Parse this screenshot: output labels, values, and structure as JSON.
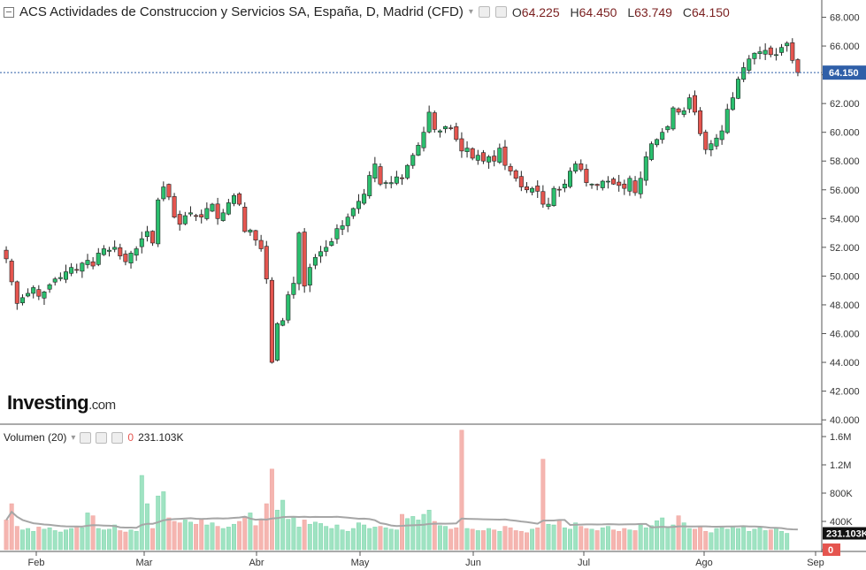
{
  "header": {
    "title": "ACS Actividades de Construccion y Servicios SA, España, D, Madrid (CFD)",
    "ohlc": [
      {
        "k": "O",
        "v": "64.225"
      },
      {
        "k": "H",
        "v": "64.450"
      },
      {
        "k": "L",
        "v": "63.749"
      },
      {
        "k": "C",
        "v": "64.150"
      }
    ]
  },
  "logo": {
    "brand": "Investing",
    "suffix": ".com"
  },
  "volume_legend": {
    "label": "Volumen (20)",
    "zero": "0",
    "value": "231.103K"
  },
  "colors": {
    "up": "#26a69a",
    "up_fill": "#2bbf6e",
    "down": "#e5554f",
    "vol_up": "#9fe3c2",
    "vol_down": "#f5b5b0",
    "ma": "#a6a6a6",
    "price_line": "#2f5fa8"
  },
  "chart_data": [
    {
      "type": "candlestick",
      "title": "ACS Actividades de Construccion y Servicios SA, España, D, Madrid (CFD)",
      "x_ticks": [
        "Feb",
        "Mar",
        "Abr",
        "May",
        "Jun",
        "Jul",
        "Ago",
        "Sep"
      ],
      "y_ticks": [
        "40.000",
        "42.000",
        "44.000",
        "46.000",
        "48.000",
        "50.000",
        "52.000",
        "54.000",
        "56.000",
        "58.000",
        "60.000",
        "62.000",
        "64.000",
        "66.000",
        "68.000"
      ],
      "ylim": [
        39.7,
        69.2
      ],
      "last_price": "64.150",
      "grid": false,
      "closes": [
        51.2,
        49.6,
        48.1,
        48.5,
        48.8,
        49.2,
        48.6,
        48.9,
        49.4,
        49.8,
        49.9,
        50.3,
        50.6,
        50.4,
        50.9,
        51.1,
        50.7,
        51.6,
        51.9,
        51.8,
        52.0,
        51.4,
        51.0,
        51.6,
        51.9,
        52.6,
        53.1,
        52.3,
        55.3,
        56.2,
        55.5,
        54.1,
        53.6,
        54.2,
        54.4,
        54.2,
        54.1,
        54.7,
        55.0,
        54.0,
        54.4,
        55.1,
        55.6,
        55.0,
        53.1,
        53.2,
        52.5,
        51.9,
        49.8,
        44.0,
        46.7,
        46.9,
        48.7,
        49.5,
        53.0,
        49.3,
        50.6,
        51.3,
        51.7,
        52.0,
        52.4,
        53.3,
        53.5,
        54.1,
        54.7,
        55.2,
        55.7,
        57.0,
        57.8,
        56.4,
        56.5,
        56.5,
        56.9,
        56.8,
        57.7,
        58.4,
        59.1,
        60.0,
        61.4,
        60.2,
        60.1,
        60.4,
        60.3,
        59.5,
        58.7,
        58.9,
        58.2,
        58.4,
        58.0,
        58.3,
        58.0,
        58.9,
        57.7,
        57.3,
        56.8,
        56.2,
        56.0,
        56.1,
        55.9,
        55.0,
        55.0,
        56.1,
        56.0,
        56.4,
        57.3,
        57.8,
        57.4,
        56.5,
        56.4,
        56.3,
        56.6,
        56.6,
        56.4,
        56.3,
        56.1,
        56.8,
        55.8,
        56.8,
        58.3,
        59.2,
        59.5,
        60.0,
        60.4,
        61.7,
        61.4,
        61.5,
        62.4,
        61.4,
        59.9,
        58.8,
        59.2,
        59.6,
        60.1,
        61.6,
        62.4,
        63.7,
        64.5,
        65.1,
        65.5,
        65.6,
        65.7,
        65.4,
        65.4,
        65.9,
        66.2,
        65.0,
        64.15
      ],
      "volume": {
        "ylim": [
          0,
          1750000
        ],
        "y_ticks": [
          "0",
          "400K",
          "800K",
          "1.2M",
          "1.6M"
        ],
        "last": "231.103K",
        "values": [
          420000,
          650000,
          330000,
          280000,
          300000,
          260000,
          320000,
          290000,
          310000,
          270000,
          250000,
          280000,
          300000,
          330000,
          310000,
          520000,
          480000,
          300000,
          280000,
          290000,
          350000,
          270000,
          250000,
          280000,
          260000,
          1050000,
          650000,
          300000,
          760000,
          820000,
          450000,
          400000,
          380000,
          420000,
          390000,
          360000,
          430000,
          350000,
          380000,
          330000,
          300000,
          320000,
          360000,
          400000,
          470000,
          520000,
          340000,
          420000,
          650000,
          1140000,
          560000,
          700000,
          430000,
          460000,
          320000,
          420000,
          360000,
          390000,
          370000,
          330000,
          300000,
          350000,
          280000,
          260000,
          300000,
          380000,
          350000,
          300000,
          320000,
          330000,
          310000,
          290000,
          280000,
          500000,
          440000,
          470000,
          420000,
          500000,
          560000,
          400000,
          340000,
          330000,
          290000,
          310000,
          1690000,
          300000,
          290000,
          270000,
          270000,
          300000,
          280000,
          260000,
          330000,
          310000,
          270000,
          260000,
          240000,
          290000,
          310000,
          1280000,
          360000,
          350000,
          420000,
          310000,
          290000,
          380000,
          330000,
          300000,
          290000,
          270000,
          310000,
          330000,
          280000,
          260000,
          300000,
          280000,
          270000,
          350000,
          310000,
          340000,
          410000,
          450000,
          320000,
          350000,
          480000,
          380000,
          300000,
          290000,
          320000,
          260000,
          240000,
          300000,
          310000,
          290000,
          330000,
          300000,
          320000,
          260000,
          290000,
          310000,
          270000,
          280000,
          300000,
          260000,
          231103
        ],
        "ma_period": 20
      }
    }
  ]
}
